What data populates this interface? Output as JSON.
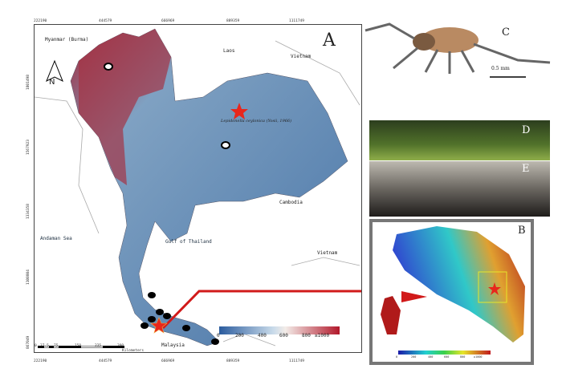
{
  "panel_labels": {
    "a": "A",
    "b": "B",
    "c": "C",
    "d": "D",
    "e": "E"
  },
  "map_a": {
    "countries": {
      "myanmar": "Myanmar (Burma)",
      "laos": "Laos",
      "vietnam_n": "Vietnam",
      "cambodia": "Cambodia",
      "vietnam_s": "Vietnam",
      "malaysia": "Malaysia"
    },
    "seas": {
      "andaman": "Andaman Sea",
      "gulf": "Gulf of Thailand"
    },
    "species_label": "Lepidonella ceylonica (Yosii, 1966)",
    "north_label": "N",
    "x_ticks": [
      "222190",
      "444579",
      "666969",
      "889359",
      "1111749"
    ],
    "y_ticks": [
      "1801498",
      "1567923",
      "1334358",
      "1100804",
      "867049"
    ],
    "scale_bar": {
      "ticks": [
        "0",
        "37.5",
        "75",
        "150",
        "225",
        "300"
      ],
      "unit": "Kilometers"
    },
    "elevation_legend": {
      "ticks": [
        "0",
        "200",
        "400",
        "600",
        "800",
        "≥1000"
      ],
      "colors": [
        "#2b5c9e",
        "#8fb4d6",
        "#eef2f5",
        "#f1b39a",
        "#b2182b"
      ]
    },
    "markers": {
      "star_color": "#e8261c",
      "occurrence_color": "#000000"
    }
  },
  "panel_b": {
    "legend_ticks": [
      "0",
      "200",
      "400",
      "600",
      "800",
      "≥1000"
    ],
    "colors": [
      "#1a1aa8",
      "#2e6de0",
      "#22d0d0",
      "#3ad04a",
      "#e6e62a",
      "#e68a1f",
      "#c0191e"
    ]
  },
  "panel_c": {
    "scale": "0.5 mm"
  },
  "arrow_color": "#d11a1a"
}
